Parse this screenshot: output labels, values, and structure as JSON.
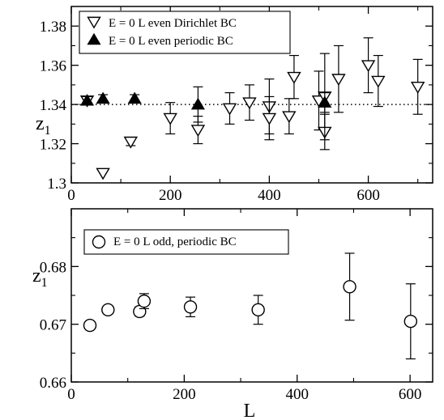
{
  "chart_data": [
    {
      "type": "scatter",
      "xlabel": "",
      "ylabel": "z1",
      "ylabel_main": "z",
      "ylabel_sub": "1",
      "xlim": [
        0,
        730
      ],
      "ylim": [
        1.3,
        1.39
      ],
      "xticks": [
        "0",
        "200",
        "400",
        "600"
      ],
      "xtick_values": [
        0,
        200,
        400,
        600
      ],
      "yticks": [
        "1.3",
        "1.32",
        "1.34",
        "1.36",
        "1.38"
      ],
      "ytick_values": [
        1.3,
        1.32,
        1.34,
        1.36,
        1.38
      ],
      "reference_line": 1.34,
      "grid": false,
      "legend_position": "top-left",
      "series": [
        {
          "name": "E = 0  L even Dirichlet BC",
          "marker": "open-triangle-down",
          "points": [
            {
              "x": 32,
              "y": 1.342,
              "err": 0.002
            },
            {
              "x": 64,
              "y": 1.305,
              "err": 0
            },
            {
              "x": 120,
              "y": 1.321,
              "err": 0.002
            },
            {
              "x": 200,
              "y": 1.333,
              "err": 0.008
            },
            {
              "x": 256,
              "y": 1.327,
              "err": 0.007
            },
            {
              "x": 320,
              "y": 1.338,
              "err": 0.008
            },
            {
              "x": 360,
              "y": 1.341,
              "err": 0.009
            },
            {
              "x": 400,
              "y": 1.339,
              "err": 0.014
            },
            {
              "x": 400,
              "y": 1.333,
              "err": 0.011
            },
            {
              "x": 440,
              "y": 1.334,
              "err": 0.009
            },
            {
              "x": 450,
              "y": 1.354,
              "err": 0.011
            },
            {
              "x": 500,
              "y": 1.342,
              "err": 0.015
            },
            {
              "x": 512,
              "y": 1.326,
              "err": 0.009
            },
            {
              "x": 512,
              "y": 1.344,
              "err": 0.022
            },
            {
              "x": 540,
              "y": 1.353,
              "err": 0.017
            },
            {
              "x": 600,
              "y": 1.36,
              "err": 0.014
            },
            {
              "x": 620,
              "y": 1.352,
              "err": 0.013
            },
            {
              "x": 700,
              "y": 1.349,
              "err": 0.014
            }
          ]
        },
        {
          "name": "E = 0  L even periodic BC",
          "marker": "filled-triangle-up",
          "points": [
            {
              "x": 32,
              "y": 1.342,
              "err": 0.002
            },
            {
              "x": 64,
              "y": 1.343,
              "err": 0.002
            },
            {
              "x": 128,
              "y": 1.343,
              "err": 0.002
            },
            {
              "x": 256,
              "y": 1.34,
              "err": 0.009
            },
            {
              "x": 512,
              "y": 1.341,
              "err": 0.005
            }
          ]
        }
      ]
    },
    {
      "type": "scatter",
      "xlabel": "L",
      "ylabel": "z1",
      "ylabel_main": "z",
      "ylabel_sub": "1",
      "xlim": [
        0,
        640
      ],
      "ylim": [
        0.66,
        0.69
      ],
      "xticks": [
        "0",
        "200",
        "400",
        "600"
      ],
      "xtick_values": [
        0,
        200,
        400,
        600
      ],
      "yticks": [
        "0.66",
        "0.67",
        "0.68"
      ],
      "ytick_values": [
        0.66,
        0.67,
        0.68
      ],
      "grid": false,
      "legend_position": "top-left",
      "series": [
        {
          "name": "E = 0  L odd, periodic BC",
          "marker": "open-circle",
          "points": [
            {
              "x": 33,
              "y": 0.6698,
              "err": 0
            },
            {
              "x": 65,
              "y": 0.6725,
              "err": 0
            },
            {
              "x": 121,
              "y": 0.6722,
              "err": 0.0008
            },
            {
              "x": 129,
              "y": 0.674,
              "err": 0.0013
            },
            {
              "x": 211,
              "y": 0.673,
              "err": 0.0017
            },
            {
              "x": 331,
              "y": 0.6725,
              "err": 0.0025
            },
            {
              "x": 493,
              "y": 0.6765,
              "err": 0.0058
            },
            {
              "x": 601,
              "y": 0.6705,
              "err": 0.0065
            }
          ]
        }
      ]
    }
  ]
}
